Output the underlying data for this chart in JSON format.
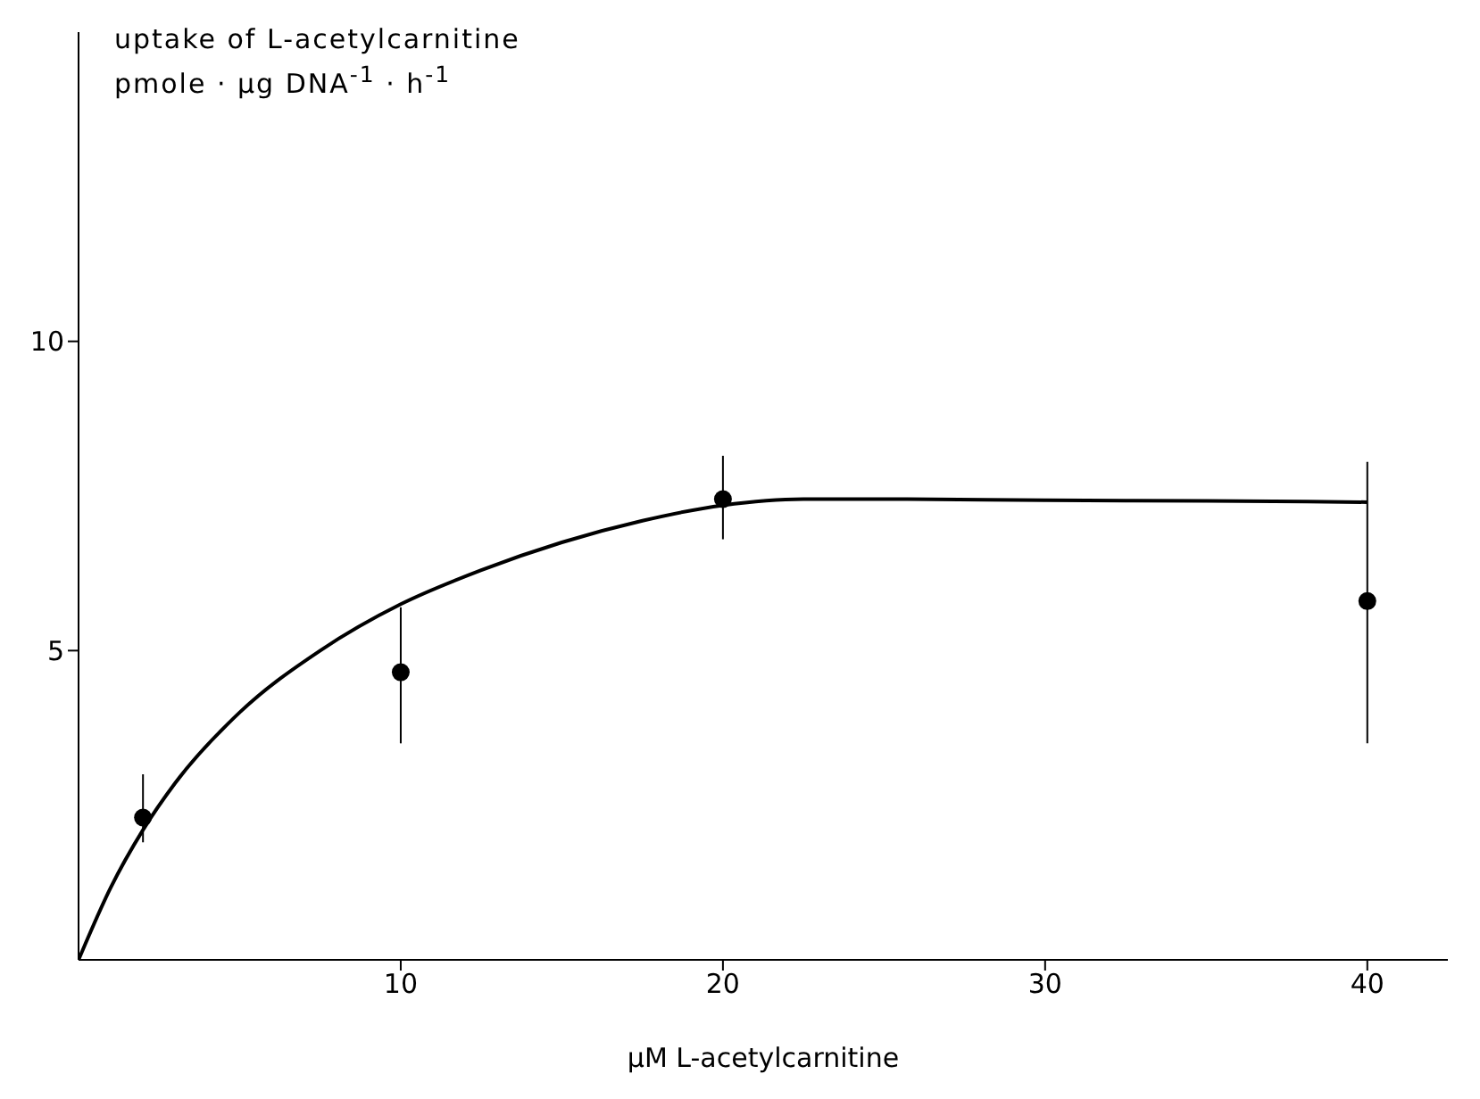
{
  "chart_data": {
    "type": "scatter",
    "ylabel": "uptake of L-acetylcarnitine\npmole · µg DNA$^{-1}$ · h$^{-1}$",
    "xlabel": "µM L-acetylcarnitine",
    "series": [
      {
        "color": "#000000",
        "x": [
          2,
          10,
          20,
          40
        ],
        "values": [
          2.3,
          4.65,
          7.45,
          5.8
        ],
        "errors": [
          [
            1.9,
            3.0
          ],
          [
            3.5,
            5.7
          ],
          [
            6.8,
            8.15
          ],
          [
            3.5,
            8.05
          ]
        ],
        "marker": "circle"
      },
      {
        "type": "line",
        "color": "#000000",
        "x": [
          0,
          1,
          2,
          3,
          5,
          7.5,
          10,
          12.5,
          15,
          17.5,
          20,
          22.5,
          25,
          30,
          35,
          40
        ],
        "values": [
          0,
          1.17,
          2.1,
          2.86,
          4.0,
          5.0,
          5.75,
          6.3,
          6.75,
          7.1,
          7.35,
          7.45,
          7.45,
          7.43,
          7.42,
          7.4
        ],
        "marker": "none",
        "line_style": "solid"
      }
    ],
    "xlim": [
      0,
      42.5
    ],
    "xticks": [
      10,
      20,
      30,
      40
    ],
    "ylim": [
      0,
      15
    ],
    "yticks": [
      5,
      10
    ],
    "grid": false
  }
}
